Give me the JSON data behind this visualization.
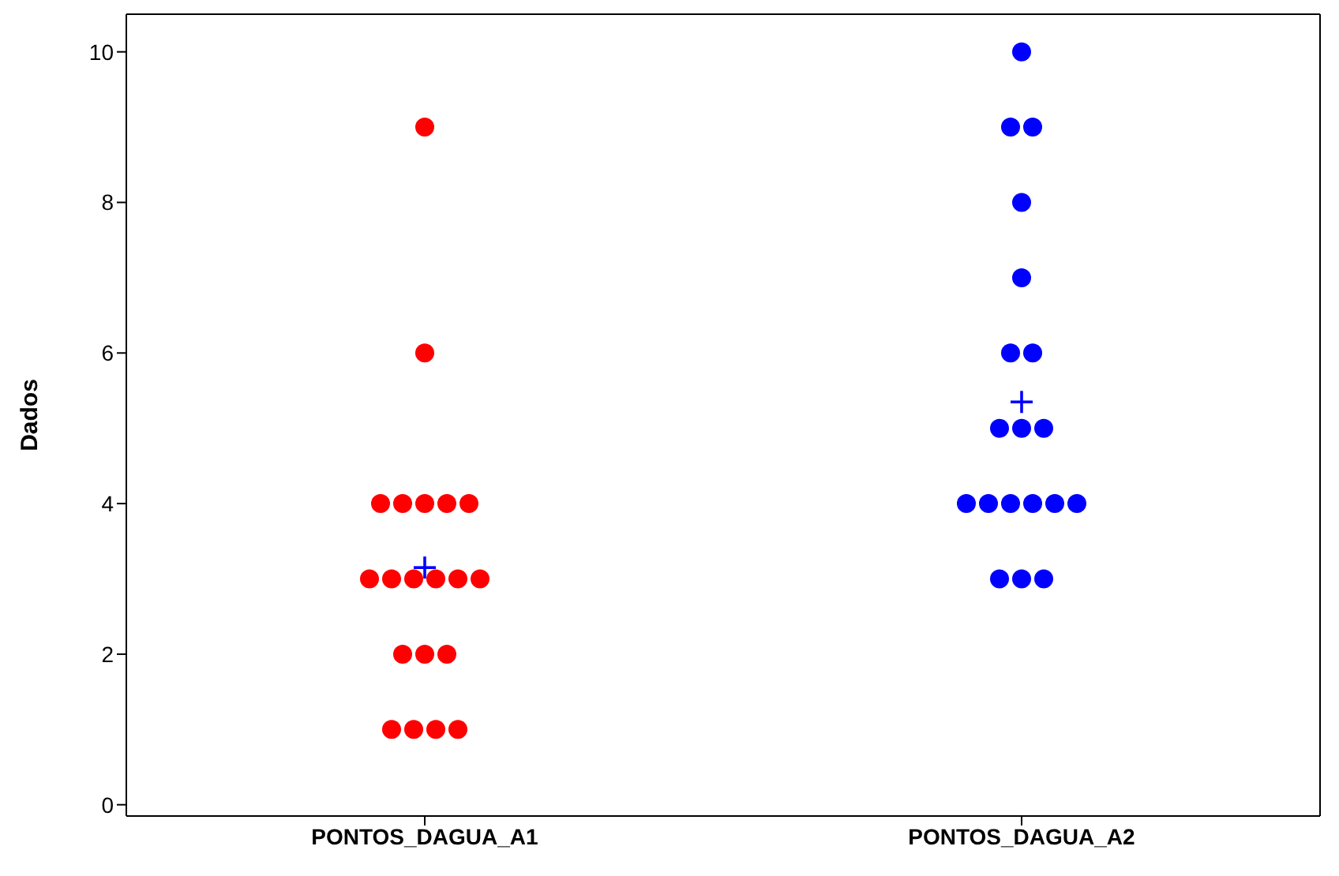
{
  "chart_data": {
    "type": "scatter",
    "ylabel": "Dados",
    "categories": [
      "PONTOS_DAGUA_A1",
      "PONTOS_DAGUA_A2"
    ],
    "ylim": [
      -0.15,
      10.5
    ],
    "yticks": [
      0,
      2,
      4,
      6,
      8,
      10
    ],
    "marker": "circle",
    "series": [
      {
        "color": "#ff0000",
        "x": [
          "PONTOS_DAGUA_A1",
          "PONTOS_DAGUA_A1",
          "PONTOS_DAGUA_A1",
          "PONTOS_DAGUA_A1",
          "PONTOS_DAGUA_A1",
          "PONTOS_DAGUA_A1",
          "PONTOS_DAGUA_A1",
          "PONTOS_DAGUA_A1",
          "PONTOS_DAGUA_A1",
          "PONTOS_DAGUA_A1",
          "PONTOS_DAGUA_A1",
          "PONTOS_DAGUA_A1",
          "PONTOS_DAGUA_A1",
          "PONTOS_DAGUA_A1",
          "PONTOS_DAGUA_A1",
          "PONTOS_DAGUA_A1",
          "PONTOS_DAGUA_A1",
          "PONTOS_DAGUA_A1",
          "PONTOS_DAGUA_A1",
          "PONTOS_DAGUA_A1"
        ],
        "values": [
          9,
          6,
          4,
          4,
          4,
          4,
          4,
          3,
          3,
          3,
          3,
          3,
          3,
          2,
          2,
          2,
          1,
          1,
          1,
          1
        ]
      },
      {
        "color": "#0000ff",
        "x": [
          "PONTOS_DAGUA_A2",
          "PONTOS_DAGUA_A2",
          "PONTOS_DAGUA_A2",
          "PONTOS_DAGUA_A2",
          "PONTOS_DAGUA_A2",
          "PONTOS_DAGUA_A2",
          "PONTOS_DAGUA_A2",
          "PONTOS_DAGUA_A2",
          "PONTOS_DAGUA_A2",
          "PONTOS_DAGUA_A2",
          "PONTOS_DAGUA_A2",
          "PONTOS_DAGUA_A2",
          "PONTOS_DAGUA_A2",
          "PONTOS_DAGUA_A2",
          "PONTOS_DAGUA_A2",
          "PONTOS_DAGUA_A2",
          "PONTOS_DAGUA_A2",
          "PONTOS_DAGUA_A2",
          "PONTOS_DAGUA_A2"
        ],
        "values": [
          10,
          9,
          9,
          8,
          7,
          6,
          6,
          5,
          5,
          5,
          4,
          4,
          4,
          4,
          4,
          4,
          3,
          3,
          3
        ]
      },
      {
        "color": "#0000ff",
        "marker": "cross",
        "x": [
          "PONTOS_DAGUA_A1",
          "PONTOS_DAGUA_A2"
        ],
        "values": [
          3.15,
          5.35
        ]
      }
    ]
  }
}
